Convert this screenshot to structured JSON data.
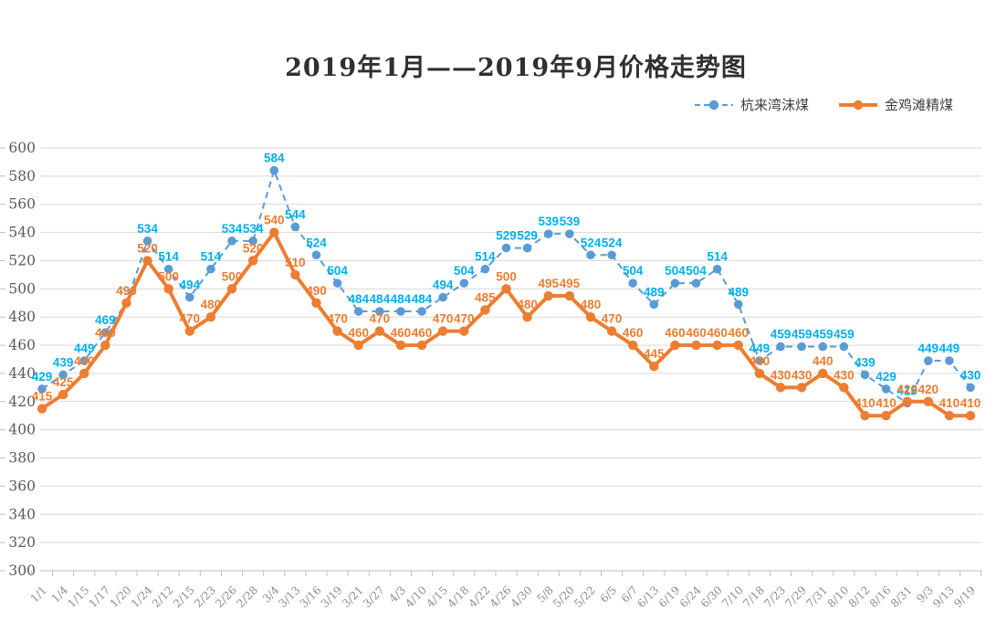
{
  "title": "2019年1月——2019年9月价格走势图",
  "legend": [
    {
      "label": "杭来湾沫煤",
      "color": "#5B9BD5",
      "style": "dashed"
    },
    {
      "label": "金鸡滩精煤",
      "color": "#ED7D31",
      "style": "solid"
    }
  ],
  "colors": {
    "blue_line": "#5B9BD5",
    "blue_label": "#00B0F0",
    "orange_line": "#ED7D31",
    "orange_label": "#ED7D31",
    "gridline": "#D9D9D9",
    "axis": "#BFBFBF",
    "y_tick_text": "#595959",
    "x_tick_text": "#8C8C8C",
    "title_text": "#303030"
  },
  "chart_data": {
    "type": "line",
    "title": "2019年1月——2019年9月价格走势图",
    "xlabel": "",
    "ylabel": "",
    "ylim": [
      300,
      600
    ],
    "ytick_step": 20,
    "grid": true,
    "legend_position": "top-right",
    "categories": [
      "1/1",
      "1/4",
      "1/15",
      "1/17",
      "1/20",
      "1/24",
      "2/12",
      "2/15",
      "2/23",
      "2/26",
      "2/28",
      "3/4",
      "3/13",
      "3/16",
      "3/19",
      "3/21",
      "3/27",
      "4/3",
      "4/10",
      "4/15",
      "4/18",
      "4/22",
      "4/26",
      "4/30",
      "5/8",
      "5/20",
      "5/22",
      "6/5",
      "6/7",
      "6/13",
      "6/19",
      "6/24",
      "6/30",
      "7/10",
      "7/18",
      "7/23",
      "7/29",
      "7/31",
      "8/10",
      "8/12",
      "8/16",
      "8/31",
      "9/3",
      "9/13",
      "9/19"
    ],
    "series": [
      {
        "name": "杭来湾沫煤",
        "dashed": true,
        "color": "#5B9BD5",
        "label_color": "#00B0F0",
        "values": [
          429,
          439,
          449,
          469,
          490,
          534,
          514,
          494,
          514,
          534,
          534,
          584,
          544,
          524,
          504,
          484,
          484,
          484,
          484,
          494,
          504,
          514,
          529,
          529,
          539,
          539,
          524,
          524,
          504,
          489,
          504,
          504,
          514,
          489,
          449,
          459,
          459,
          459,
          459,
          439,
          429,
          419,
          449,
          449,
          430
        ]
      },
      {
        "name": "金鸡滩精煤",
        "dashed": false,
        "color": "#ED7D31",
        "label_color": "#ED7D31",
        "values": [
          415,
          425,
          440,
          460,
          490,
          520,
          500,
          470,
          480,
          500,
          520,
          540,
          510,
          490,
          470,
          460,
          470,
          460,
          460,
          470,
          470,
          485,
          500,
          480,
          495,
          495,
          480,
          470,
          460,
          445,
          460,
          460,
          460,
          460,
          440,
          430,
          430,
          440,
          430,
          410,
          410,
          420,
          420,
          410,
          410
        ]
      }
    ]
  }
}
